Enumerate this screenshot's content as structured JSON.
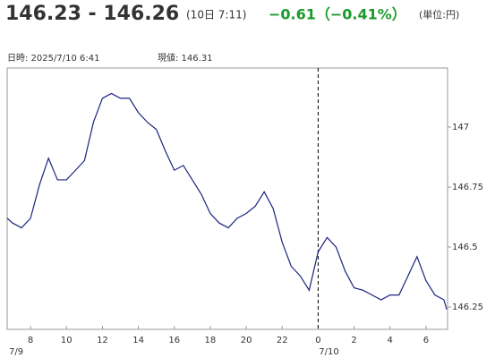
{
  "chart_data": {
    "type": "line",
    "title": "146.23 - 146.26",
    "subtitle": "(10日 7:11)",
    "change": "−0.61（−0.41%）",
    "unit": "(単位:円)",
    "datetime_label": "日時: 2025/7/10  6:41",
    "current_label": "現値: 146.31",
    "x": [
      6.7,
      7.0,
      7.5,
      8.0,
      8.5,
      9.0,
      9.5,
      10.0,
      10.5,
      11.0,
      11.5,
      12.0,
      12.5,
      13.0,
      13.5,
      14.0,
      14.5,
      15.0,
      15.5,
      16.0,
      16.5,
      17.0,
      17.5,
      18.0,
      18.5,
      19.0,
      19.5,
      20.0,
      20.5,
      21.0,
      21.5,
      22.0,
      22.5,
      23.0,
      23.5,
      24.0,
      24.5,
      25.0,
      25.5,
      26.0,
      26.5,
      27.0,
      27.5,
      28.0,
      28.5,
      29.0,
      29.5,
      30.0,
      30.5,
      31.0,
      31.15
    ],
    "series": [
      {
        "color": "#1a237e",
        "values": [
          146.62,
          146.6,
          146.58,
          146.62,
          146.76,
          146.87,
          146.78,
          146.78,
          146.82,
          146.86,
          147.02,
          147.12,
          147.14,
          147.12,
          147.12,
          147.06,
          147.02,
          146.99,
          146.9,
          146.82,
          146.84,
          146.78,
          146.72,
          146.64,
          146.6,
          146.58,
          146.62,
          146.64,
          146.67,
          146.73,
          146.66,
          146.52,
          146.42,
          146.38,
          146.32,
          146.48,
          146.54,
          146.5,
          146.4,
          146.33,
          146.32,
          146.3,
          146.28,
          146.3,
          146.3,
          146.38,
          146.46,
          146.36,
          146.3,
          146.28,
          146.24
        ]
      }
    ],
    "xlim": [
      6.7,
      31.2
    ],
    "xticks": [
      8,
      10,
      12,
      14,
      16,
      18,
      20,
      22,
      {
        "value": 24,
        "label": "0"
      },
      {
        "value": 26,
        "label": "2"
      },
      {
        "value": 28,
        "label": "4"
      },
      {
        "value": 30,
        "label": "6"
      }
    ],
    "date_labels": [
      {
        "value": 7.2,
        "label": "7/9"
      },
      {
        "value": 24.6,
        "label": "7/10"
      }
    ],
    "divider_x": 24,
    "ylim": [
      146.157,
      147.246
    ],
    "yticks": [
      146.25,
      146.5,
      146.75,
      147
    ]
  }
}
